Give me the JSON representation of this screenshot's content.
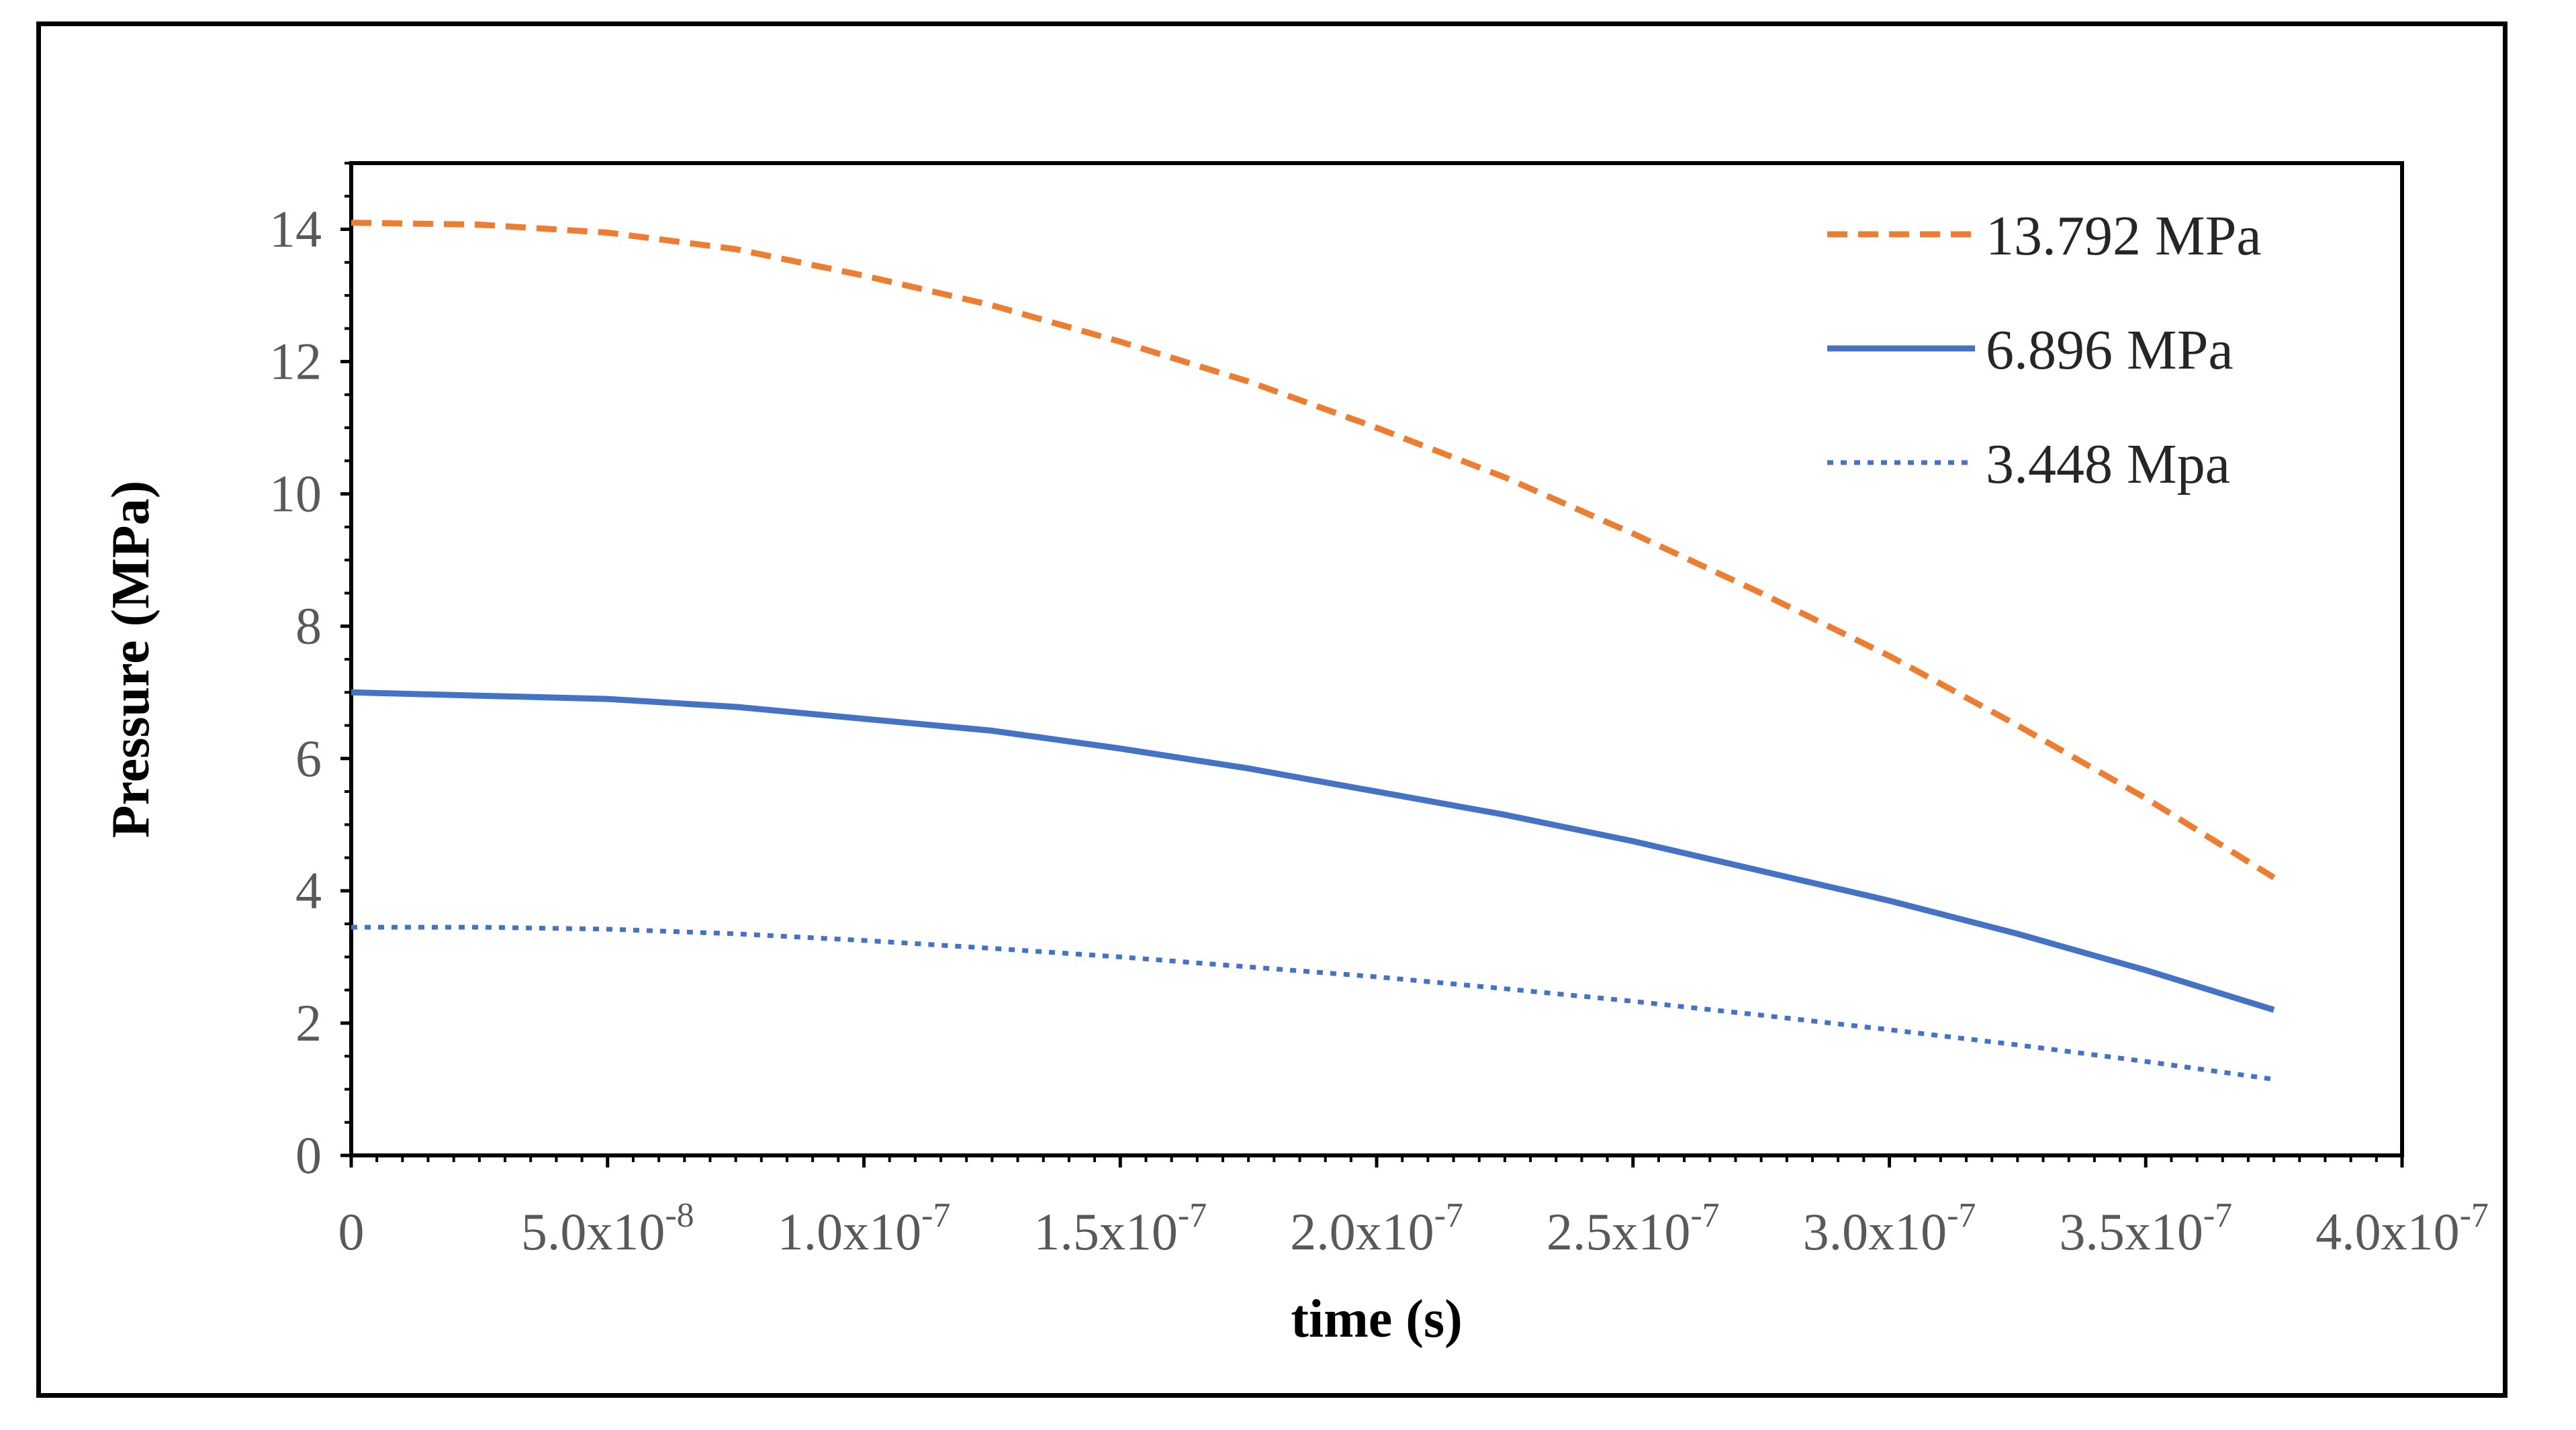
{
  "chart_data": {
    "type": "line",
    "title": "",
    "xlabel": "time (s)",
    "ylabel": "Pressure (MPa)",
    "xlim": [
      0,
      4e-07
    ],
    "ylim": [
      0,
      15
    ],
    "x_ticks": [
      {
        "value": 0,
        "base": "0",
        "exp": ""
      },
      {
        "value": 5e-08,
        "base": "5.0x10",
        "exp": "-8"
      },
      {
        "value": 1e-07,
        "base": "1.0x10",
        "exp": "-7"
      },
      {
        "value": 1.5e-07,
        "base": "1.5x10",
        "exp": "-7"
      },
      {
        "value": 2e-07,
        "base": "2.0x10",
        "exp": "-7"
      },
      {
        "value": 2.5e-07,
        "base": "2.5x10",
        "exp": "-7"
      },
      {
        "value": 3e-07,
        "base": "3.0x10",
        "exp": "-7"
      },
      {
        "value": 3.5e-07,
        "base": "3.5x10",
        "exp": "-7"
      },
      {
        "value": 4e-07,
        "base": "4.0x10",
        "exp": "-7"
      }
    ],
    "y_ticks": [
      0,
      2,
      4,
      6,
      8,
      10,
      12,
      14
    ],
    "legend_position": "top-right",
    "grid": false,
    "x": [
      0,
      2.5e-08,
      5e-08,
      7.5e-08,
      1e-07,
      1.25e-07,
      1.5e-07,
      1.75e-07,
      2e-07,
      2.25e-07,
      2.5e-07,
      2.75e-07,
      3e-07,
      3.25e-07,
      3.5e-07,
      3.75e-07
    ],
    "series": [
      {
        "name": "13.792 MPa",
        "color": "#ED7D31",
        "style": "dashed",
        "values": [
          14.1,
          14.07,
          13.95,
          13.7,
          13.3,
          12.85,
          12.3,
          11.7,
          11.0,
          10.25,
          9.4,
          8.5,
          7.55,
          6.5,
          5.4,
          4.2
        ]
      },
      {
        "name": "6.896 MPa",
        "color": "#4472C4",
        "style": "solid",
        "values": [
          7.0,
          6.95,
          6.9,
          6.78,
          6.6,
          6.42,
          6.15,
          5.85,
          5.5,
          5.15,
          4.75,
          4.3,
          3.85,
          3.35,
          2.8,
          2.2
        ]
      },
      {
        "name": "3.448 Mpa",
        "color": "#4472C4",
        "style": "dotted",
        "values": [
          3.45,
          3.45,
          3.42,
          3.35,
          3.25,
          3.13,
          3.0,
          2.85,
          2.7,
          2.52,
          2.33,
          2.12,
          1.9,
          1.67,
          1.42,
          1.15
        ]
      }
    ]
  }
}
